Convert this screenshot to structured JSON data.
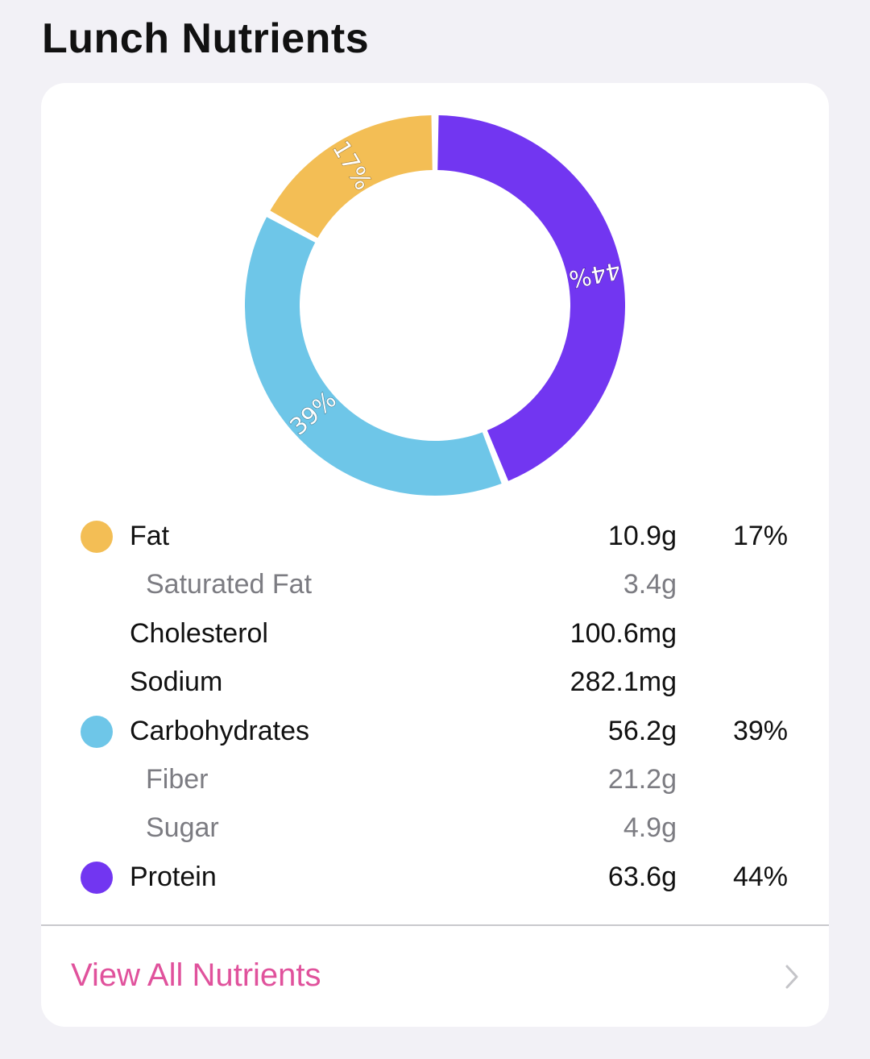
{
  "page": {
    "title": "Lunch Nutrients"
  },
  "colors": {
    "fat": "#f3be55",
    "carbohydrates": "#6ec6e8",
    "protein": "#7236f1",
    "link": "#e0529c"
  },
  "chart_data": {
    "type": "pie",
    "style": "donut",
    "title": "",
    "slices": [
      {
        "label": "Protein",
        "value": 44,
        "display": "44%",
        "color": "#7236f1"
      },
      {
        "label": "Carbohydrates",
        "value": 39,
        "display": "39%",
        "color": "#6ec6e8"
      },
      {
        "label": "Fat",
        "value": 17,
        "display": "17%",
        "color": "#f3be55"
      }
    ]
  },
  "nutrients": [
    {
      "name": "Fat",
      "amount": "10.9g",
      "percent": "17%",
      "color": "#f3be55",
      "sub": false
    },
    {
      "name": "Saturated Fat",
      "amount": "3.4g",
      "percent": "",
      "color": "",
      "sub": true
    },
    {
      "name": "Cholesterol",
      "amount": "100.6mg",
      "percent": "",
      "color": "",
      "sub": false
    },
    {
      "name": "Sodium",
      "amount": "282.1mg",
      "percent": "",
      "color": "",
      "sub": false
    },
    {
      "name": "Carbohydrates",
      "amount": "56.2g",
      "percent": "39%",
      "color": "#6ec6e8",
      "sub": false
    },
    {
      "name": "Fiber",
      "amount": "21.2g",
      "percent": "",
      "color": "",
      "sub": true
    },
    {
      "name": "Sugar",
      "amount": "4.9g",
      "percent": "",
      "color": "",
      "sub": true
    },
    {
      "name": "Protein",
      "amount": "63.6g",
      "percent": "44%",
      "color": "#7236f1",
      "sub": false
    }
  ],
  "footer": {
    "link_label": "View All Nutrients",
    "chevron_icon": "chevron-right-icon"
  }
}
